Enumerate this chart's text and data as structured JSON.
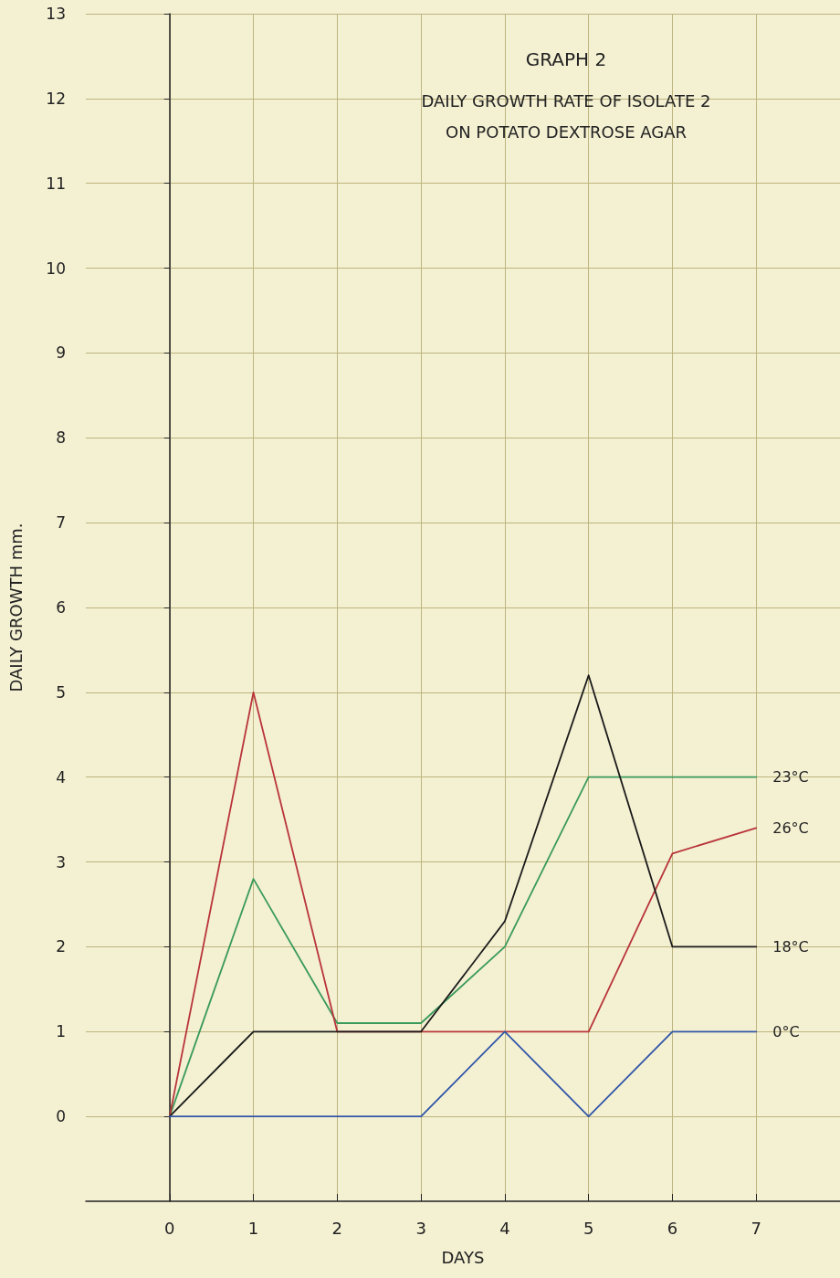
{
  "chart_data": {
    "type": "line",
    "title": "GRAPH 2",
    "subtitle": "DAILY GROWTH RATE OF ISOLATE 2\nON POTATO DEXTROSE AGAR",
    "xlabel": "DAYS",
    "ylabel": "DAILY GROWTH mm.",
    "x": [
      0,
      1,
      2,
      3,
      4,
      5,
      6,
      7
    ],
    "series": [
      {
        "name": "23°C",
        "color": "#3a9a5c",
        "values": [
          0,
          2.8,
          1.1,
          1.1,
          2.0,
          4.0,
          4.0,
          4.0
        ]
      },
      {
        "name": "26°C",
        "color": "#b8343a",
        "values": [
          0,
          5.0,
          1.0,
          1.0,
          1.0,
          1.0,
          3.1,
          3.4
        ]
      },
      {
        "name": "18°C",
        "color": "#1a1a1a",
        "values": [
          0,
          1.0,
          1.0,
          1.0,
          2.3,
          5.2,
          2.0,
          2.0
        ]
      },
      {
        "name": "0°C",
        "color": "#2f55a8",
        "values": [
          0,
          0,
          0,
          0,
          1.0,
          0,
          1.0,
          1.0
        ]
      }
    ],
    "xlim": [
      -1,
      8
    ],
    "xticks": [
      0,
      1,
      2,
      3,
      4,
      5,
      6,
      7
    ],
    "ylim": [
      -1,
      13
    ],
    "yticks": [
      0,
      1,
      2,
      3,
      4,
      5,
      6,
      7,
      8,
      9,
      10,
      11,
      12,
      13
    ],
    "grid": true,
    "legend": false,
    "marker": "none",
    "line_style": "solid"
  }
}
